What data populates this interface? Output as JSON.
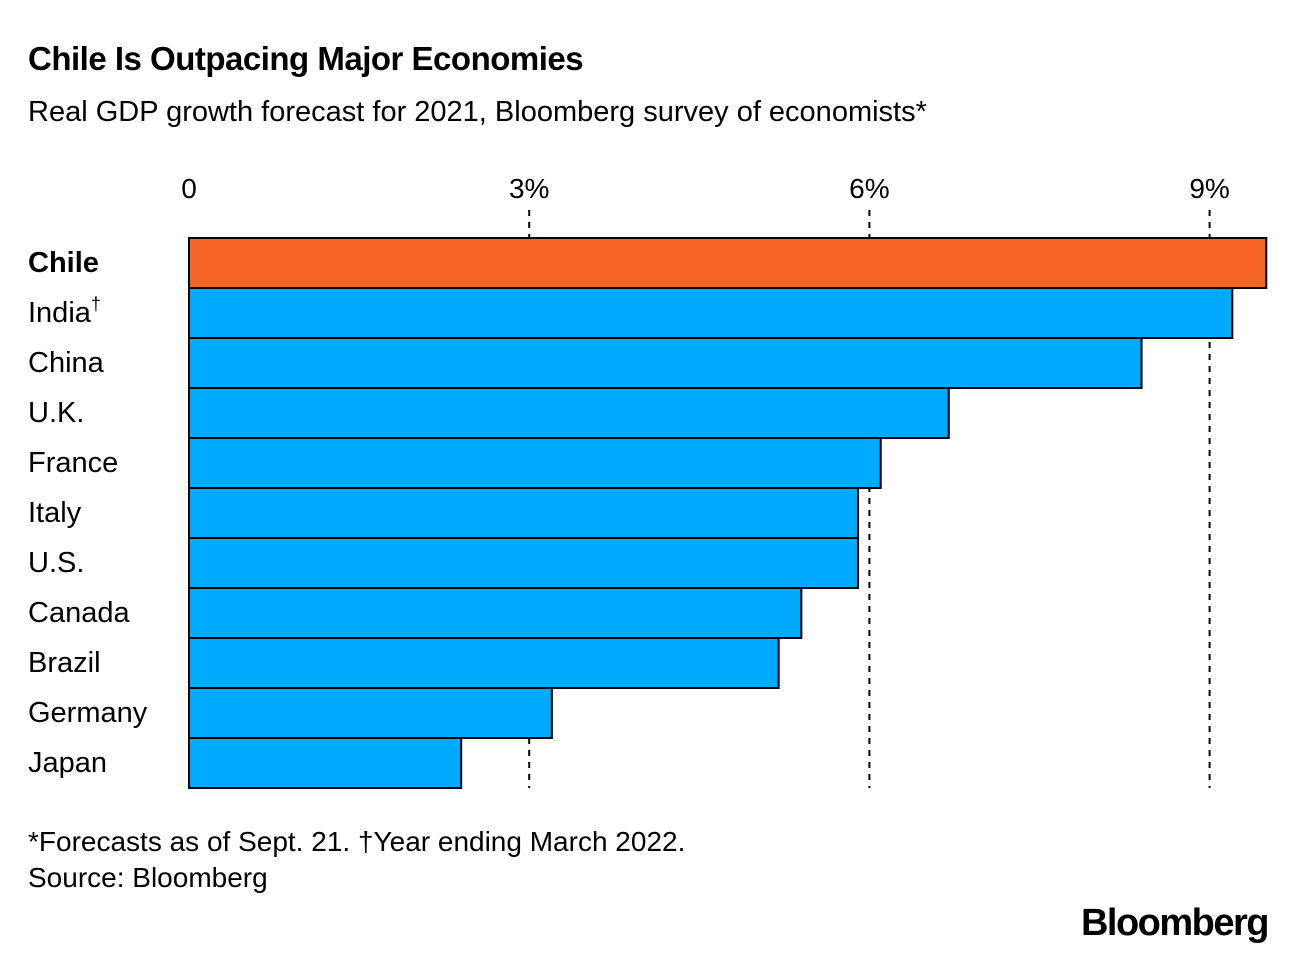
{
  "title": "Chile Is Outpacing Major Economies",
  "subtitle": "Real GDP growth forecast for 2021, Bloomberg survey of economists*",
  "chart_data": {
    "type": "bar",
    "orientation": "horizontal",
    "categories": [
      "Chile",
      "India",
      "China",
      "U.K.",
      "France",
      "Italy",
      "U.S.",
      "Canada",
      "Brazil",
      "Germany",
      "Japan"
    ],
    "category_marks": {
      "India": "†"
    },
    "highlight": "Chile",
    "values": [
      9.5,
      9.2,
      8.4,
      6.7,
      6.1,
      5.9,
      5.9,
      5.4,
      5.2,
      3.2,
      2.4
    ],
    "unit": "%",
    "xlim": [
      0,
      9.6
    ],
    "xticks": [
      0,
      3,
      6,
      9
    ],
    "xtick_labels": [
      "0",
      "3%",
      "6%",
      "9%"
    ],
    "grid": "dashed vertical lines",
    "colors": {
      "highlight": "#f26522",
      "default": "#00aaff",
      "stroke": "#000000"
    }
  },
  "footnotes": [
    "*Forecasts as of Sept. 21. †Year ending March 2022.",
    "Source: Bloomberg"
  ],
  "brand": "Bloomberg"
}
